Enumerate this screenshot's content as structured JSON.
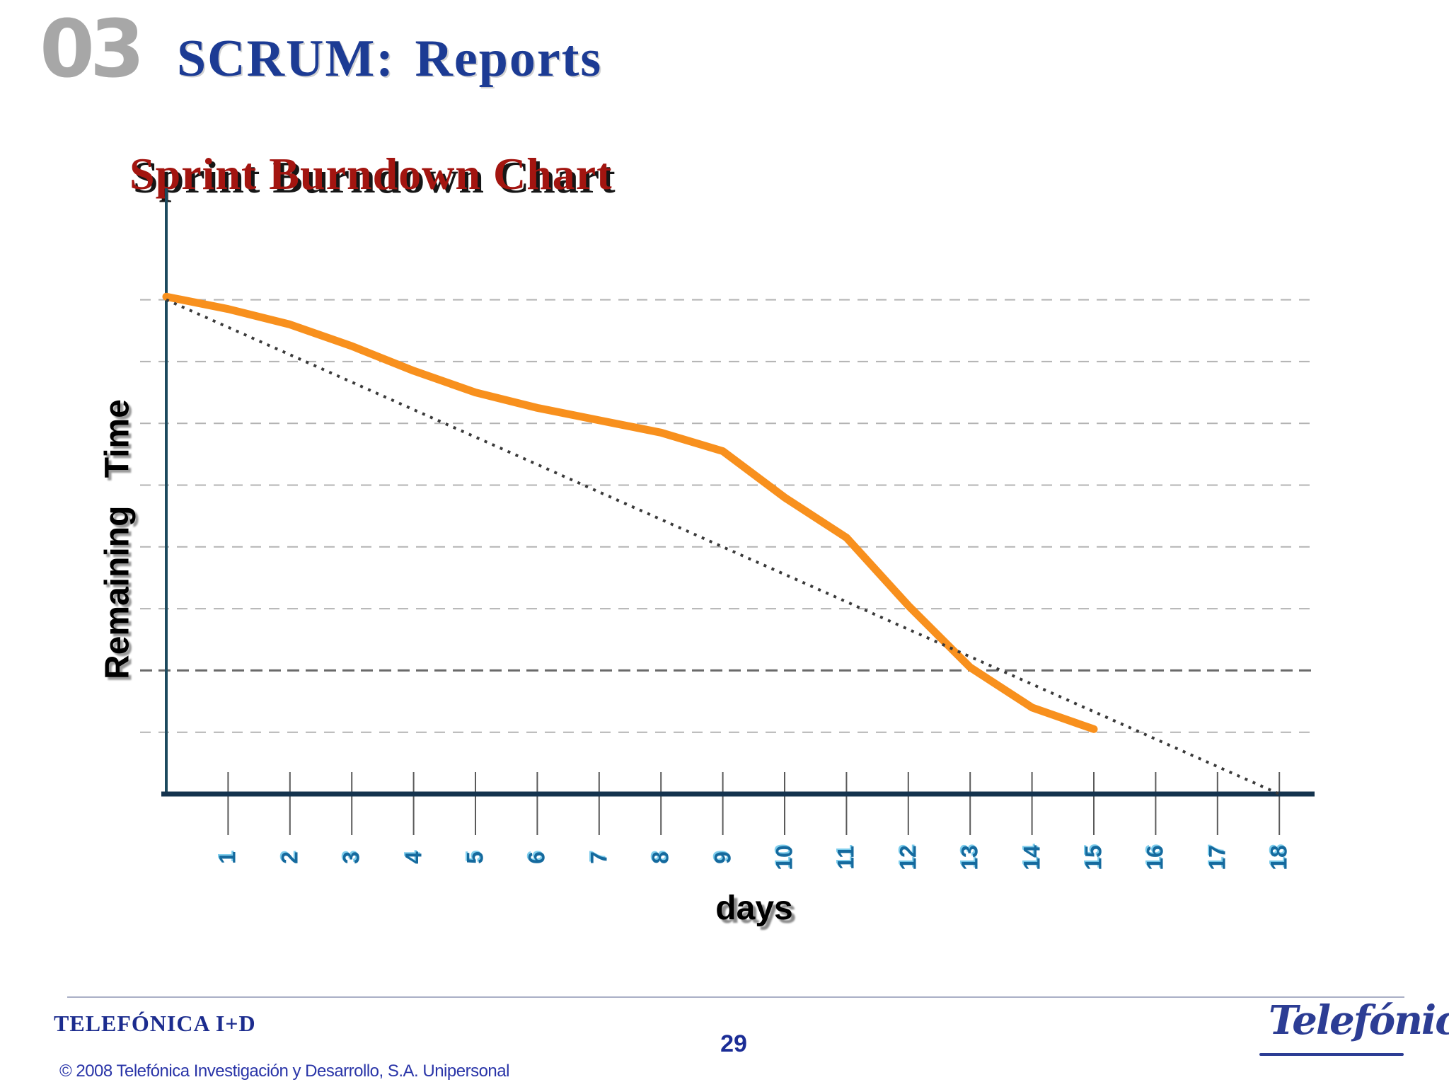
{
  "header": {
    "section_number": "03",
    "title": "SCRUM: Reports"
  },
  "slide": {
    "subtitle": "Sprint Burndown Chart"
  },
  "chart_data": {
    "type": "line",
    "title": "Sprint Burndown Chart",
    "xlabel": "days",
    "ylabel": "Remaining Time",
    "x_tick_labels": [
      "1",
      "2",
      "3",
      "4",
      "5",
      "6",
      "7",
      "8",
      "9",
      "10",
      "11",
      "12",
      "13",
      "14",
      "15",
      "16",
      "17",
      "18"
    ],
    "xlim": [
      0,
      18.5
    ],
    "ylim": [
      0,
      18.5
    ],
    "grid": "horizontal-dashed",
    "gridlines_y": [
      2,
      4,
      6,
      8,
      10,
      12,
      14,
      16
    ],
    "emphasized_gridline_y": 4,
    "legend": "none",
    "y_tick_labels_visible": false,
    "series": [
      {
        "name": "actual-remaining",
        "style": "solid",
        "color": "#F8901D",
        "x": [
          0,
          1,
          2,
          3,
          4,
          5,
          6,
          7,
          8,
          9,
          10,
          11,
          12,
          13,
          14,
          15
        ],
        "y": [
          16.1,
          15.7,
          15.2,
          14.5,
          13.7,
          13.0,
          12.5,
          12.1,
          11.7,
          11.1,
          9.6,
          8.3,
          6.1,
          4.1,
          2.8,
          2.1
        ]
      },
      {
        "name": "ideal-burndown",
        "style": "dotted",
        "color": "#3a3a3a",
        "x": [
          0,
          18
        ],
        "y": [
          16,
          0
        ]
      }
    ]
  },
  "footer": {
    "company": "TELEFÓNICA I+D",
    "page_number": "29",
    "copyright": "© 2008 Telefónica Investigación y Desarrollo, S.A. Unipersonal",
    "logo_text": "Telefónica"
  },
  "colors": {
    "header_number": "#a7a7a7",
    "header_title": "#1c3b94",
    "subtitle": "#a31510",
    "axis": "#17375e",
    "gridline": "#b3b3b3",
    "gridline_emphasized": "#6a6a6a",
    "tick_label": "#156a9e",
    "actual_line": "#F8901D",
    "ideal_line": "#3a3a3a",
    "footer_text": "#1c2c8e"
  }
}
